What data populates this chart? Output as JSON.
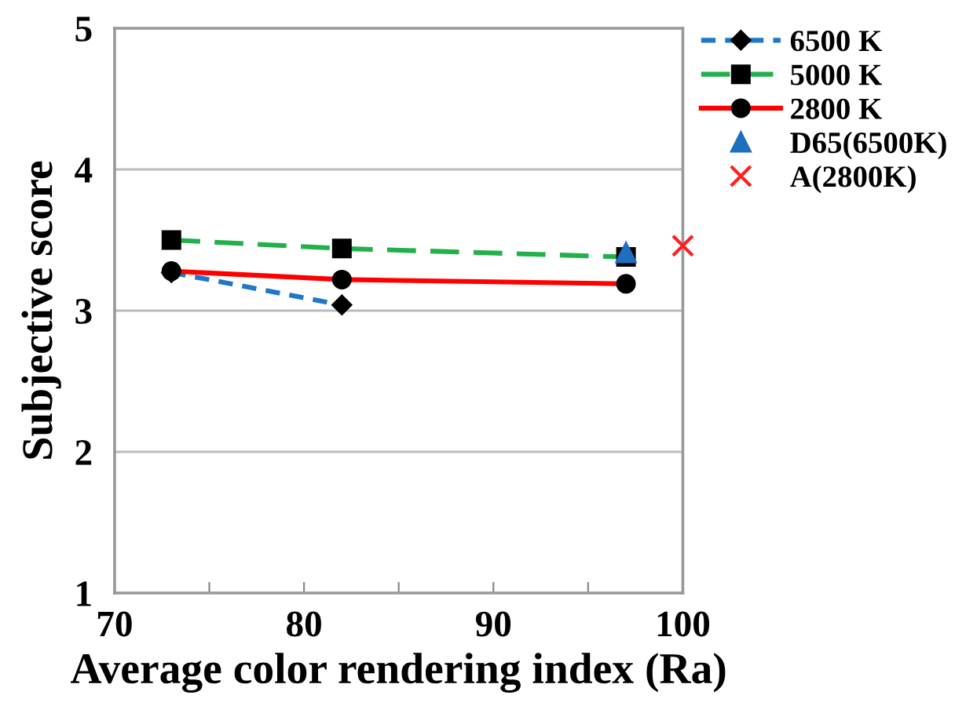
{
  "chart_data": {
    "type": "line",
    "xlabel": "Average color rendering index (Ra)",
    "ylabel": "Subjective score",
    "xlim": [
      70,
      100
    ],
    "ylim": [
      1,
      5
    ],
    "xticks": [
      70,
      {
        "value": 75,
        "label": null
      },
      80,
      {
        "value": 85,
        "label": null
      },
      90,
      {
        "value": 95,
        "label": null
      },
      100
    ],
    "yticks": [
      1,
      2,
      3,
      4,
      5
    ],
    "grid": "y",
    "legend": "top right",
    "series": [
      {
        "name": "6500 K",
        "color": "#1f77c8",
        "x": [
          73,
          82
        ],
        "values": [
          3.27,
          3.04
        ],
        "marker": "diamond",
        "line_style": "dotted"
      },
      {
        "name": "5000 K",
        "color": "#22b04a",
        "x": [
          73,
          82,
          97
        ],
        "values": [
          3.5,
          3.44,
          3.38
        ],
        "marker": "square",
        "line_style": "dashed"
      },
      {
        "name": "2800 K",
        "color": "#ff0000",
        "x": [
          73,
          82,
          97
        ],
        "values": [
          3.28,
          3.22,
          3.19
        ],
        "marker": "circle",
        "line_style": "solid"
      },
      {
        "name": "D65(6500K)",
        "type": "scatter",
        "color": "#1f6fc0",
        "x": [
          97
        ],
        "values": [
          3.41
        ],
        "marker": "triangle"
      },
      {
        "name": "A(2800K)",
        "type": "scatter",
        "color": "#ff2020",
        "x": [
          100
        ],
        "values": [
          3.46
        ],
        "marker": "cross"
      }
    ]
  }
}
